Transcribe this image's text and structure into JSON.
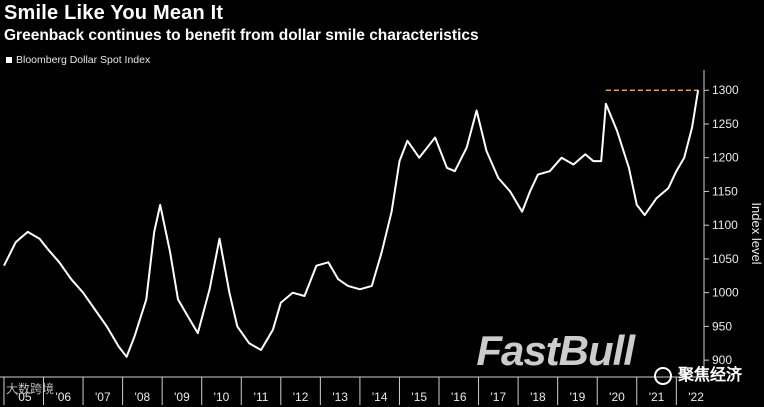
{
  "title": "Smile Like You Mean It",
  "subtitle": "Greenback continues to benefit from dollar smile characteristics",
  "watermark": "FastBull",
  "watermark2": "聚焦经济",
  "watermark3": "大数跨境",
  "colors": {
    "background": "#000000",
    "series": "#ffffff",
    "reference_line": "#e8a33a"
  },
  "chart_data": {
    "type": "line",
    "series": [
      {
        "name": "Bloomberg Dollar Spot Index",
        "x": [
          2005.0,
          2005.3,
          2005.6,
          2005.9,
          2006.1,
          2006.4,
          2006.7,
          2007.0,
          2007.3,
          2007.6,
          2007.9,
          2008.1,
          2008.3,
          2008.6,
          2008.8,
          2008.95,
          2009.2,
          2009.4,
          2009.7,
          2009.9,
          2010.2,
          2010.45,
          2010.7,
          2010.9,
          2011.2,
          2011.5,
          2011.8,
          2012.0,
          2012.3,
          2012.6,
          2012.9,
          2013.2,
          2013.45,
          2013.7,
          2014.0,
          2014.3,
          2014.55,
          2014.8,
          2015.0,
          2015.2,
          2015.5,
          2015.9,
          2016.2,
          2016.4,
          2016.7,
          2016.95,
          2017.2,
          2017.5,
          2017.8,
          2018.1,
          2018.3,
          2018.5,
          2018.8,
          2019.1,
          2019.4,
          2019.7,
          2019.9,
          2020.1,
          2020.22,
          2020.5,
          2020.8,
          2021.0,
          2021.2,
          2021.5,
          2021.8,
          2022.0,
          2022.2,
          2022.4,
          2022.55
        ],
        "y": [
          1040,
          1075,
          1090,
          1080,
          1065,
          1045,
          1020,
          1000,
          975,
          950,
          920,
          905,
          935,
          990,
          1090,
          1130,
          1060,
          990,
          960,
          940,
          1005,
          1080,
          1000,
          950,
          925,
          915,
          945,
          985,
          1000,
          995,
          1040,
          1045,
          1020,
          1010,
          1005,
          1010,
          1060,
          1120,
          1195,
          1225,
          1200,
          1230,
          1185,
          1180,
          1215,
          1270,
          1210,
          1170,
          1150,
          1120,
          1150,
          1175,
          1180,
          1200,
          1190,
          1205,
          1195,
          1195,
          1280,
          1240,
          1185,
          1130,
          1115,
          1140,
          1155,
          1180,
          1200,
          1245,
          1300
        ]
      }
    ],
    "reference_line": {
      "y": 1300,
      "x_start": 2020.22,
      "x_end": 2022.55
    },
    "y_axis": {
      "label": "Index level",
      "ticks": [
        900,
        950,
        1000,
        1050,
        1100,
        1150,
        1200,
        1250,
        1300
      ],
      "range": [
        875,
        1330
      ],
      "position": "right"
    },
    "x_axis": {
      "ticks": [
        "'05",
        "'06",
        "'07",
        "'08",
        "'09",
        "'10",
        "'11",
        "'12",
        "'13",
        "'14",
        "'15",
        "'16",
        "'17",
        "'18",
        "'19",
        "'20",
        "'21",
        "'22"
      ],
      "range": [
        2004.9,
        2022.7
      ]
    }
  }
}
